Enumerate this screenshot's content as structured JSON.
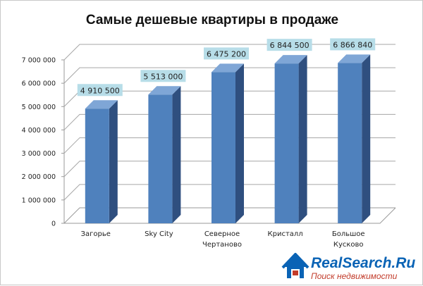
{
  "chart_data": {
    "type": "bar",
    "title": "Самые дешевые квартиры в продаже",
    "categories": [
      [
        "Загорье"
      ],
      [
        "Sky City"
      ],
      [
        "Северное",
        "Чертаново"
      ],
      [
        "Кристалл"
      ],
      [
        "Большое",
        "Кусково"
      ]
    ],
    "values": [
      4910500,
      5513000,
      6475200,
      6844500,
      6866840
    ],
    "value_labels": [
      "4 910 500",
      "5 513 000",
      "6 475 200",
      "6 844 500",
      "6 866 840"
    ],
    "y_ticks": [
      0,
      1000000,
      2000000,
      3000000,
      4000000,
      5000000,
      6000000,
      7000000
    ],
    "y_tick_labels": [
      "0",
      "1 000 000",
      "2 000 000",
      "3 000 000",
      "4 000 000",
      "5 000 000",
      "6 000 000",
      "7 000 000"
    ],
    "ylim": [
      0,
      7000000
    ],
    "grid": true,
    "bar_color": "#4f81bd",
    "label_box_color": "#b7dde8"
  },
  "logo": {
    "name": "RealSearch.Ru",
    "tagline": "Поиск недвижимости",
    "color": "#0a63b5",
    "tagline_color": "#c23b2a"
  }
}
